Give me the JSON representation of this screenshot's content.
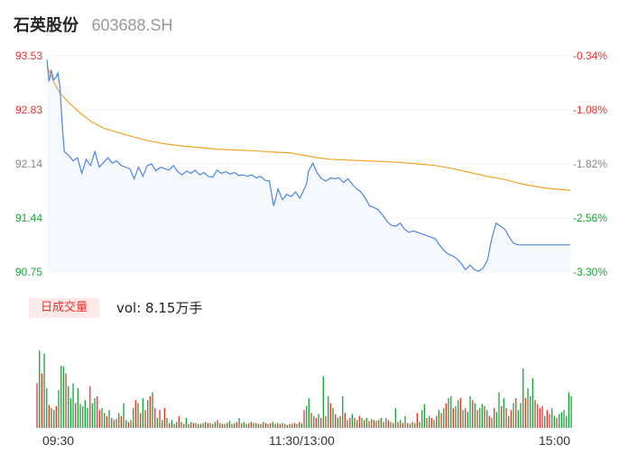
{
  "header": {
    "name": "石英股份",
    "code": "603688.SH"
  },
  "volume": {
    "badge_label": "日成交量",
    "readout": "vol: 8.15万手"
  },
  "colors": {
    "price_line": "#4e86e4",
    "avg_line": "#f2a52a",
    "up": "#e8322e",
    "down": "#1aa33c",
    "area_fill": "#f5f8fd"
  },
  "chart_data": {
    "type": "line",
    "y_left_ticks": [
      "93.53",
      "92.83",
      "92.14",
      "91.44",
      "90.75"
    ],
    "y_right_ticks": [
      "-0.34%",
      "-1.08%",
      "-1.82%",
      "-2.56%",
      "-3.30%"
    ],
    "ylim": [
      90.75,
      93.53
    ],
    "x_tick_labels": [
      "09:30",
      "11:30/13:00",
      "15:00"
    ],
    "x_range": [
      0,
      240
    ],
    "series": [
      {
        "role": "price",
        "x": [
          0,
          1,
          2,
          3,
          4,
          5,
          6,
          7,
          8,
          10,
          12,
          14,
          16,
          18,
          20,
          22,
          24,
          26,
          28,
          30,
          32,
          34,
          36,
          38,
          40,
          42,
          44,
          46,
          48,
          50,
          52,
          54,
          56,
          58,
          60,
          62,
          64,
          66,
          68,
          70,
          72,
          74,
          76,
          78,
          80,
          82,
          84,
          86,
          88,
          90,
          92,
          94,
          96,
          98,
          100,
          102,
          104,
          106,
          108,
          110,
          112,
          114,
          116,
          118,
          119,
          120,
          122,
          124,
          126,
          128,
          130,
          132,
          134,
          136,
          138,
          140,
          142,
          144,
          146,
          148,
          150,
          152,
          154,
          156,
          158,
          160,
          162,
          164,
          166,
          168,
          170,
          172,
          174,
          176,
          178,
          180,
          182,
          184,
          186,
          188,
          190,
          192,
          194,
          196,
          198,
          200,
          202,
          204,
          206,
          208,
          210,
          212,
          214,
          216,
          218,
          220,
          222,
          224,
          226,
          228,
          230,
          232,
          234,
          236,
          238,
          240
        ],
        "y": [
          93.48,
          93.2,
          93.35,
          93.22,
          93.25,
          93.31,
          93.12,
          92.65,
          92.3,
          92.25,
          92.18,
          92.22,
          92.02,
          92.2,
          92.12,
          92.3,
          92.1,
          92.16,
          92.22,
          92.15,
          92.18,
          92.12,
          92.1,
          92.08,
          91.95,
          92.1,
          91.98,
          92.12,
          92.14,
          92.05,
          92.1,
          92.08,
          92.06,
          92.12,
          92.04,
          92.0,
          92.05,
          92.02,
          92.06,
          92.0,
          92.03,
          91.98,
          91.97,
          92.06,
          92.02,
          92.04,
          92.01,
          92.03,
          91.99,
          92.0,
          91.98,
          92.0,
          91.96,
          91.98,
          91.93,
          91.92,
          91.6,
          91.82,
          91.68,
          91.75,
          91.72,
          91.78,
          91.7,
          91.82,
          91.88,
          92.05,
          92.15,
          92.02,
          91.95,
          91.92,
          91.96,
          91.95,
          91.96,
          91.9,
          91.95,
          91.88,
          91.82,
          91.78,
          91.7,
          91.6,
          91.58,
          91.55,
          91.48,
          91.4,
          91.35,
          91.34,
          91.38,
          91.3,
          91.26,
          91.28,
          91.26,
          91.24,
          91.22,
          91.2,
          91.18,
          91.1,
          91.03,
          90.98,
          90.96,
          90.92,
          90.86,
          90.78,
          90.84,
          90.78,
          90.76,
          90.8,
          90.9,
          91.18,
          91.38,
          91.34,
          91.3,
          91.2,
          91.12,
          91.1,
          91.1,
          91.1,
          91.1,
          91.1,
          91.1,
          91.1,
          91.1,
          91.1,
          91.1,
          91.1,
          91.1,
          91.1
        ]
      },
      {
        "role": "average",
        "x": [
          0,
          3,
          6,
          10,
          15,
          20,
          26,
          32,
          38,
          46,
          54,
          62,
          70,
          78,
          86,
          94,
          100,
          106,
          112,
          118,
          124,
          130,
          138,
          146,
          154,
          162,
          170,
          178,
          186,
          194,
          202,
          210,
          218,
          226,
          232,
          236,
          240
        ],
        "y": [
          93.4,
          93.2,
          93.05,
          92.93,
          92.8,
          92.69,
          92.6,
          92.55,
          92.5,
          92.44,
          92.4,
          92.37,
          92.35,
          92.33,
          92.32,
          92.31,
          92.3,
          92.29,
          92.28,
          92.25,
          92.22,
          92.2,
          92.19,
          92.18,
          92.17,
          92.16,
          92.14,
          92.12,
          92.08,
          92.03,
          91.98,
          91.94,
          91.88,
          91.84,
          91.82,
          91.81,
          91.8
        ]
      }
    ],
    "volume_bars": [
      [
        0,
        0.45,
        "up"
      ],
      [
        1,
        0.78,
        "down"
      ],
      [
        2,
        0.55,
        "up"
      ],
      [
        3,
        0.75,
        "down"
      ],
      [
        4,
        0.4,
        "down"
      ],
      [
        5,
        0.23,
        "up"
      ],
      [
        6,
        0.2,
        "down"
      ],
      [
        7,
        0.18,
        "down"
      ],
      [
        8,
        0.22,
        "up"
      ],
      [
        9,
        0.38,
        "down"
      ],
      [
        10,
        0.63,
        "down"
      ],
      [
        11,
        0.62,
        "down"
      ],
      [
        12,
        0.55,
        "up"
      ],
      [
        13,
        0.42,
        "down"
      ],
      [
        14,
        0.3,
        "down"
      ],
      [
        15,
        0.45,
        "down"
      ],
      [
        16,
        0.25,
        "up"
      ],
      [
        17,
        0.4,
        "down"
      ],
      [
        18,
        0.24,
        "down"
      ],
      [
        19,
        0.22,
        "down"
      ],
      [
        20,
        0.28,
        "down"
      ],
      [
        21,
        0.2,
        "down"
      ],
      [
        22,
        0.42,
        "up"
      ],
      [
        23,
        0.25,
        "down"
      ],
      [
        24,
        0.3,
        "down"
      ],
      [
        25,
        0.32,
        "up"
      ],
      [
        26,
        0.18,
        "up"
      ],
      [
        27,
        0.2,
        "down"
      ],
      [
        28,
        0.15,
        "down"
      ],
      [
        29,
        0.12,
        "up"
      ],
      [
        30,
        0.18,
        "down"
      ],
      [
        31,
        0.1,
        "up"
      ],
      [
        32,
        0.08,
        "down"
      ],
      [
        33,
        0.09,
        "up"
      ],
      [
        34,
        0.15,
        "down"
      ],
      [
        35,
        0.12,
        "up"
      ],
      [
        36,
        0.25,
        "down"
      ],
      [
        37,
        0.08,
        "down"
      ],
      [
        38,
        0.06,
        "up"
      ],
      [
        39,
        0.08,
        "down"
      ],
      [
        40,
        0.2,
        "down"
      ],
      [
        41,
        0.28,
        "up"
      ],
      [
        42,
        0.25,
        "down"
      ],
      [
        43,
        0.15,
        "up"
      ],
      [
        44,
        0.3,
        "down"
      ],
      [
        45,
        0.18,
        "up"
      ],
      [
        46,
        0.28,
        "down"
      ],
      [
        47,
        0.32,
        "up"
      ],
      [
        48,
        0.36,
        "down"
      ],
      [
        49,
        0.2,
        "up"
      ],
      [
        50,
        0.1,
        "down"
      ],
      [
        51,
        0.18,
        "up"
      ],
      [
        52,
        0.08,
        "down"
      ],
      [
        53,
        0.2,
        "up"
      ],
      [
        54,
        0.1,
        "down"
      ],
      [
        55,
        0.05,
        "up"
      ],
      [
        56,
        0.08,
        "down"
      ],
      [
        57,
        0.04,
        "up"
      ],
      [
        58,
        0.06,
        "down"
      ],
      [
        59,
        0.12,
        "up"
      ],
      [
        60,
        0.06,
        "down"
      ],
      [
        61,
        0.04,
        "up"
      ],
      [
        62,
        0.1,
        "down"
      ],
      [
        63,
        0.04,
        "up"
      ],
      [
        64,
        0.06,
        "down"
      ],
      [
        65,
        0.05,
        "up"
      ],
      [
        66,
        0.05,
        "down"
      ],
      [
        67,
        0.04,
        "up"
      ],
      [
        68,
        0.04,
        "down"
      ],
      [
        69,
        0.05,
        "up"
      ],
      [
        70,
        0.06,
        "down"
      ],
      [
        71,
        0.05,
        "up"
      ],
      [
        72,
        0.05,
        "down"
      ],
      [
        73,
        0.04,
        "up"
      ],
      [
        74,
        0.06,
        "down"
      ],
      [
        75,
        0.08,
        "up"
      ],
      [
        76,
        0.05,
        "down"
      ],
      [
        77,
        0.04,
        "up"
      ],
      [
        78,
        0.04,
        "down"
      ],
      [
        79,
        0.05,
        "up"
      ],
      [
        80,
        0.07,
        "down"
      ],
      [
        81,
        0.04,
        "up"
      ],
      [
        82,
        0.05,
        "down"
      ],
      [
        83,
        0.06,
        "up"
      ],
      [
        84,
        0.1,
        "down"
      ],
      [
        85,
        0.05,
        "up"
      ],
      [
        86,
        0.06,
        "down"
      ],
      [
        87,
        0.04,
        "up"
      ],
      [
        88,
        0.05,
        "down"
      ],
      [
        89,
        0.06,
        "up"
      ],
      [
        90,
        0.05,
        "down"
      ],
      [
        91,
        0.05,
        "up"
      ],
      [
        92,
        0.04,
        "down"
      ],
      [
        93,
        0.04,
        "up"
      ],
      [
        94,
        0.06,
        "down"
      ],
      [
        95,
        0.05,
        "up"
      ],
      [
        96,
        0.04,
        "down"
      ],
      [
        97,
        0.05,
        "up"
      ],
      [
        98,
        0.06,
        "down"
      ],
      [
        99,
        0.04,
        "up"
      ],
      [
        100,
        0.05,
        "down"
      ],
      [
        101,
        0.04,
        "up"
      ],
      [
        102,
        0.05,
        "down"
      ],
      [
        103,
        0.04,
        "up"
      ],
      [
        104,
        0.03,
        "down"
      ],
      [
        105,
        0.04,
        "up"
      ],
      [
        106,
        0.04,
        "down"
      ],
      [
        107,
        0.05,
        "up"
      ],
      [
        108,
        0.04,
        "down"
      ],
      [
        109,
        0.06,
        "up"
      ],
      [
        110,
        0.05,
        "down"
      ],
      [
        111,
        0.18,
        "up"
      ],
      [
        112,
        0.22,
        "down"
      ],
      [
        113,
        0.3,
        "down"
      ],
      [
        114,
        0.15,
        "up"
      ],
      [
        115,
        0.12,
        "down"
      ],
      [
        116,
        0.1,
        "up"
      ],
      [
        117,
        0.14,
        "down"
      ],
      [
        118,
        0.1,
        "up"
      ],
      [
        119,
        0.52,
        "down"
      ],
      [
        120,
        0.12,
        "up"
      ],
      [
        121,
        0.32,
        "down"
      ],
      [
        122,
        0.25,
        "up"
      ],
      [
        123,
        0.2,
        "down"
      ],
      [
        124,
        0.14,
        "up"
      ],
      [
        125,
        0.1,
        "down"
      ],
      [
        126,
        0.12,
        "up"
      ],
      [
        127,
        0.32,
        "down"
      ],
      [
        128,
        0.15,
        "up"
      ],
      [
        129,
        0.08,
        "down"
      ],
      [
        130,
        0.1,
        "up"
      ],
      [
        131,
        0.14,
        "down"
      ],
      [
        132,
        0.1,
        "up"
      ],
      [
        133,
        0.08,
        "down"
      ],
      [
        134,
        0.12,
        "up"
      ],
      [
        135,
        0.1,
        "down"
      ],
      [
        136,
        0.08,
        "up"
      ],
      [
        137,
        0.1,
        "down"
      ],
      [
        138,
        0.07,
        "up"
      ],
      [
        139,
        0.09,
        "down"
      ],
      [
        140,
        0.08,
        "up"
      ],
      [
        141,
        0.07,
        "down"
      ],
      [
        142,
        0.08,
        "up"
      ],
      [
        143,
        0.1,
        "down"
      ],
      [
        144,
        0.06,
        "up"
      ],
      [
        145,
        0.1,
        "down"
      ],
      [
        146,
        0.08,
        "up"
      ],
      [
        147,
        0.06,
        "down"
      ],
      [
        148,
        0.05,
        "up"
      ],
      [
        149,
        0.2,
        "down"
      ],
      [
        150,
        0.06,
        "up"
      ],
      [
        151,
        0.08,
        "down"
      ],
      [
        152,
        0.05,
        "up"
      ],
      [
        153,
        0.12,
        "down"
      ],
      [
        154,
        0.05,
        "up"
      ],
      [
        155,
        0.04,
        "down"
      ],
      [
        156,
        0.06,
        "up"
      ],
      [
        157,
        0.05,
        "down"
      ],
      [
        158,
        0.15,
        "up"
      ],
      [
        159,
        0.06,
        "down"
      ],
      [
        160,
        0.18,
        "down"
      ],
      [
        161,
        0.24,
        "down"
      ],
      [
        162,
        0.1,
        "up"
      ],
      [
        163,
        0.12,
        "down"
      ],
      [
        164,
        0.1,
        "up"
      ],
      [
        165,
        0.08,
        "down"
      ],
      [
        166,
        0.12,
        "up"
      ],
      [
        167,
        0.18,
        "down"
      ],
      [
        168,
        0.15,
        "up"
      ],
      [
        169,
        0.2,
        "down"
      ],
      [
        170,
        0.25,
        "up"
      ],
      [
        171,
        0.3,
        "down"
      ],
      [
        172,
        0.32,
        "down"
      ],
      [
        173,
        0.2,
        "up"
      ],
      [
        174,
        0.22,
        "down"
      ],
      [
        175,
        0.28,
        "down"
      ],
      [
        176,
        0.3,
        "up"
      ],
      [
        177,
        0.18,
        "down"
      ],
      [
        178,
        0.2,
        "up"
      ],
      [
        179,
        0.16,
        "down"
      ],
      [
        180,
        0.32,
        "down"
      ],
      [
        181,
        0.28,
        "up"
      ],
      [
        182,
        0.25,
        "down"
      ],
      [
        183,
        0.18,
        "up"
      ],
      [
        184,
        0.2,
        "down"
      ],
      [
        185,
        0.24,
        "down"
      ],
      [
        186,
        0.22,
        "up"
      ],
      [
        187,
        0.18,
        "down"
      ],
      [
        188,
        0.12,
        "up"
      ],
      [
        189,
        0.1,
        "down"
      ],
      [
        190,
        0.2,
        "up"
      ],
      [
        191,
        0.16,
        "down"
      ],
      [
        192,
        0.36,
        "down"
      ],
      [
        193,
        0.22,
        "up"
      ],
      [
        194,
        0.3,
        "down"
      ],
      [
        195,
        0.2,
        "up"
      ],
      [
        196,
        0.12,
        "down"
      ],
      [
        197,
        0.18,
        "up"
      ],
      [
        198,
        0.25,
        "down"
      ],
      [
        199,
        0.3,
        "up"
      ],
      [
        200,
        0.18,
        "down"
      ],
      [
        201,
        0.25,
        "down"
      ],
      [
        202,
        0.6,
        "down"
      ],
      [
        203,
        0.3,
        "up"
      ],
      [
        204,
        0.4,
        "down"
      ],
      [
        205,
        0.32,
        "down"
      ],
      [
        206,
        0.5,
        "down"
      ],
      [
        207,
        0.28,
        "up"
      ],
      [
        208,
        0.24,
        "up"
      ],
      [
        209,
        0.2,
        "up"
      ],
      [
        210,
        0.22,
        "up"
      ],
      [
        211,
        0.12,
        "down"
      ],
      [
        212,
        0.18,
        "up"
      ],
      [
        213,
        0.14,
        "up"
      ],
      [
        214,
        0.2,
        "down"
      ],
      [
        215,
        0.12,
        "down"
      ],
      [
        216,
        0.1,
        "up"
      ],
      [
        217,
        0.14,
        "down"
      ],
      [
        218,
        0.16,
        "down"
      ],
      [
        219,
        0.18,
        "down"
      ],
      [
        220,
        0.12,
        "down"
      ],
      [
        221,
        0.36,
        "down"
      ],
      [
        222,
        0.32,
        "down"
      ]
    ]
  }
}
